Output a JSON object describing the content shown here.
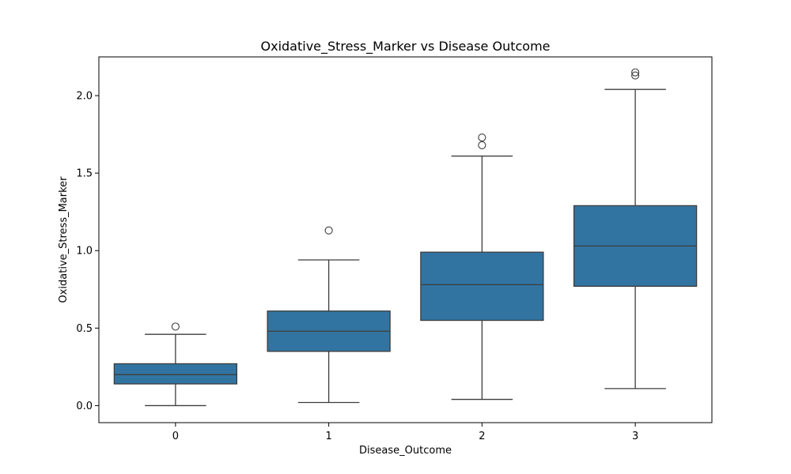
{
  "chart_data": {
    "type": "box",
    "title": "Oxidative_Stress_Marker vs Disease Outcome",
    "xlabel": "Disease_Outcome",
    "ylabel": "Oxidative_Stress_Marker",
    "ylim": [
      -0.11,
      2.25
    ],
    "yticks": [
      0.0,
      0.5,
      1.0,
      1.5,
      2.0
    ],
    "ytick_labels": [
      "0.0",
      "0.5",
      "1.0",
      "1.5",
      "2.0"
    ],
    "categories": [
      "0",
      "1",
      "2",
      "3"
    ],
    "box_color": "#3274a1",
    "line_color": "#3d3d3d",
    "grid": false,
    "boxes": [
      {
        "category": "0",
        "whisker_low": 0.0,
        "q1": 0.14,
        "median": 0.2,
        "q3": 0.27,
        "whisker_high": 0.46,
        "outliers": [
          0.51
        ]
      },
      {
        "category": "1",
        "whisker_low": 0.02,
        "q1": 0.35,
        "median": 0.48,
        "q3": 0.61,
        "whisker_high": 0.94,
        "outliers": [
          1.13
        ]
      },
      {
        "category": "2",
        "whisker_low": 0.04,
        "q1": 0.55,
        "median": 0.78,
        "q3": 0.99,
        "whisker_high": 1.61,
        "outliers": [
          1.68,
          1.73
        ]
      },
      {
        "category": "3",
        "whisker_low": 0.11,
        "q1": 0.77,
        "median": 1.03,
        "q3": 1.29,
        "whisker_high": 2.04,
        "outliers": [
          2.13,
          2.15
        ]
      }
    ]
  }
}
